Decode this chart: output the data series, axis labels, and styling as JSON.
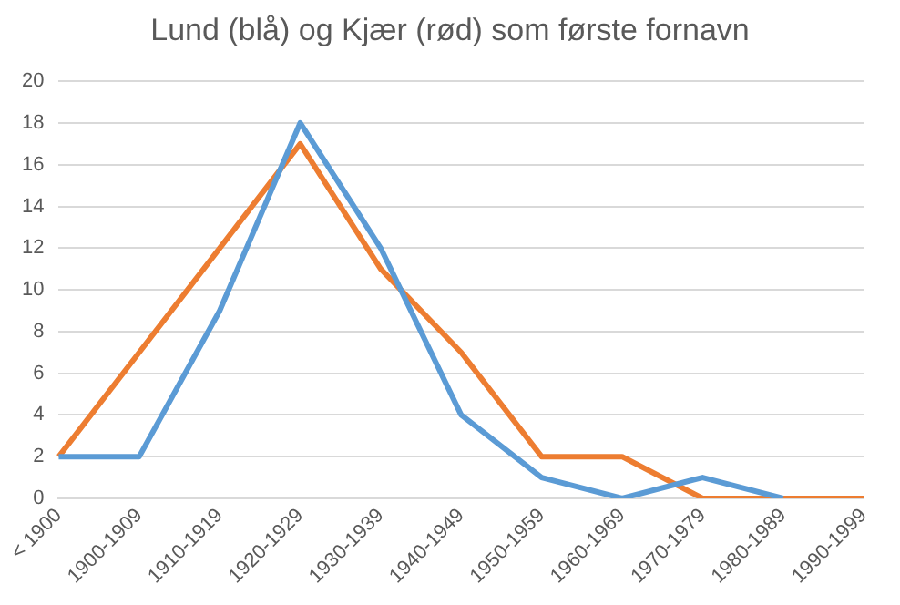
{
  "chart_data": {
    "type": "line",
    "title": "Lund (blå) og Kjær (rød) som første fornavn",
    "categories": [
      "< 1900",
      "1900-1909",
      "1910-1919",
      "1920-1929",
      "1930-1939",
      "1940-1949",
      "1950-1959",
      "1960-1969",
      "1970-1979",
      "1980-1989",
      "1990-1999"
    ],
    "series": [
      {
        "color": "#5b9bd5",
        "values": [
          2,
          2,
          9,
          18,
          12,
          4,
          1,
          0,
          1,
          0,
          null
        ]
      },
      {
        "color": "#ed7d31",
        "values": [
          2,
          7,
          12,
          17,
          11,
          7,
          2,
          2,
          0,
          0,
          0
        ]
      }
    ],
    "ylim": [
      0,
      20
    ],
    "yticks": [
      0,
      2,
      4,
      6,
      8,
      10,
      12,
      14,
      16,
      18,
      20
    ],
    "grid": "y",
    "legend": false,
    "marker": "none",
    "line_style": "solid"
  }
}
